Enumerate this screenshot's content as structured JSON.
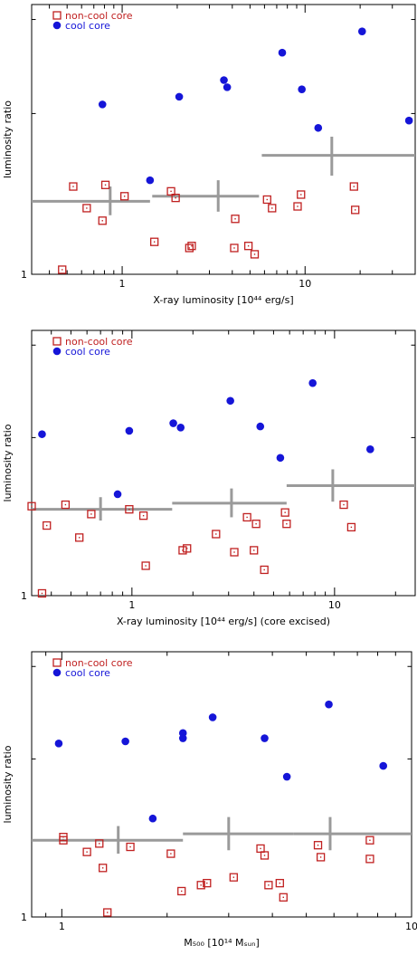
{
  "legend": {
    "non_cool": "non-cool core",
    "cool": "cool core"
  },
  "colors": {
    "non_cool": "#c02020",
    "cool": "#1515d8",
    "binned": "#9a9a9a",
    "axis": "#000000"
  },
  "chart_data": [
    {
      "type": "scatter",
      "xlabel": "X-ray luminosity [10⁴⁴ erg/s]",
      "ylabel": "luminosity ratio",
      "xscale": "log",
      "yscale": "log",
      "xlim": [
        0.32,
        40
      ],
      "ylim": [
        1,
        3.2
      ],
      "xticks": [
        {
          "v": 1,
          "label": "1"
        },
        {
          "v": 10,
          "label": "10"
        }
      ],
      "yticks": [
        {
          "v": 1,
          "label": "1"
        }
      ],
      "legend_position": "top-left",
      "series": [
        {
          "marker": "open-square",
          "points": [
            [
              0.47,
              1.02
            ],
            [
              0.54,
              1.46
            ],
            [
              0.64,
              1.33
            ],
            [
              0.78,
              1.26
            ],
            [
              0.81,
              1.47
            ],
            [
              1.03,
              1.4
            ],
            [
              1.5,
              1.15
            ],
            [
              1.85,
              1.43
            ],
            [
              1.96,
              1.39
            ],
            [
              2.33,
              1.12
            ],
            [
              2.4,
              1.13
            ],
            [
              4.15,
              1.27
            ],
            [
              4.1,
              1.12
            ],
            [
              4.9,
              1.13
            ],
            [
              5.3,
              1.09
            ],
            [
              6.2,
              1.38
            ],
            [
              6.6,
              1.33
            ],
            [
              9.1,
              1.34
            ],
            [
              9.5,
              1.41
            ],
            [
              18.5,
              1.46
            ],
            [
              18.8,
              1.32
            ]
          ]
        },
        {
          "marker": "filled-circle",
          "points": [
            [
              0.78,
              2.08
            ],
            [
              1.42,
              1.5
            ],
            [
              2.05,
              2.15
            ],
            [
              3.6,
              2.31
            ],
            [
              3.75,
              2.24
            ],
            [
              7.5,
              2.6
            ],
            [
              9.6,
              2.22
            ],
            [
              11.8,
              1.88
            ],
            [
              20.5,
              2.85
            ],
            [
              37,
              1.94
            ]
          ]
        }
      ],
      "binned": [
        {
          "x": 0.86,
          "x_lo": 0.32,
          "x_hi": 1.42,
          "y": 1.37,
          "y_lo": 1.29,
          "y_hi": 1.46
        },
        {
          "x": 3.35,
          "x_lo": 1.46,
          "x_hi": 5.6,
          "y": 1.4,
          "y_lo": 1.31,
          "y_hi": 1.5
        },
        {
          "x": 14.0,
          "x_lo": 5.8,
          "x_hi": 40,
          "y": 1.67,
          "y_lo": 1.53,
          "y_hi": 1.81
        }
      ]
    },
    {
      "type": "scatter",
      "xlabel": "X-ray luminosity [10⁴⁴ erg/s] (core excised)",
      "ylabel": "luminosity ratio",
      "xscale": "log",
      "yscale": "log",
      "xlim": [
        0.32,
        25
      ],
      "ylim": [
        1,
        3.2
      ],
      "xticks": [
        {
          "v": 1,
          "label": "1"
        },
        {
          "v": 10,
          "label": "10"
        }
      ],
      "yticks": [
        {
          "v": 1,
          "label": "1"
        }
      ],
      "legend_position": "top-left",
      "series": [
        {
          "marker": "open-square",
          "points": [
            [
              0.32,
              1.48
            ],
            [
              0.36,
              1.01
            ],
            [
              0.38,
              1.36
            ],
            [
              0.47,
              1.49
            ],
            [
              0.55,
              1.29
            ],
            [
              0.63,
              1.43
            ],
            [
              0.97,
              1.46
            ],
            [
              1.14,
              1.42
            ],
            [
              1.17,
              1.14
            ],
            [
              1.78,
              1.22
            ],
            [
              1.87,
              1.23
            ],
            [
              2.6,
              1.31
            ],
            [
              3.2,
              1.21
            ],
            [
              3.7,
              1.41
            ],
            [
              4.1,
              1.37
            ],
            [
              4.0,
              1.22
            ],
            [
              4.5,
              1.12
            ],
            [
              5.7,
              1.44
            ],
            [
              5.8,
              1.37
            ],
            [
              11.1,
              1.49
            ],
            [
              12.1,
              1.35
            ]
          ]
        },
        {
          "marker": "filled-circle",
          "points": [
            [
              0.36,
              2.03
            ],
            [
              0.85,
              1.56
            ],
            [
              0.97,
              2.06
            ],
            [
              1.6,
              2.13
            ],
            [
              1.74,
              2.09
            ],
            [
              3.06,
              2.35
            ],
            [
              4.3,
              2.1
            ],
            [
              5.4,
              1.83
            ],
            [
              7.8,
              2.54
            ],
            [
              15.0,
              1.9
            ]
          ]
        }
      ],
      "binned": [
        {
          "x": 0.7,
          "x_lo": 0.32,
          "x_hi": 1.58,
          "y": 1.46,
          "y_lo": 1.39,
          "y_hi": 1.54
        },
        {
          "x": 3.1,
          "x_lo": 1.58,
          "x_hi": 5.8,
          "y": 1.5,
          "y_lo": 1.41,
          "y_hi": 1.6
        },
        {
          "x": 9.8,
          "x_lo": 5.8,
          "x_hi": 25,
          "y": 1.62,
          "y_lo": 1.51,
          "y_hi": 1.74
        }
      ]
    },
    {
      "type": "scatter",
      "xlabel": "M₅₀₀ [10¹⁴ Mₛᵤₙ]",
      "ylabel": "luminosity ratio",
      "xscale": "log",
      "yscale": "log",
      "xlim": [
        0.82,
        10
      ],
      "ylim": [
        1,
        3.2
      ],
      "xticks": [
        {
          "v": 1,
          "label": "1"
        },
        {
          "v": 10,
          "label": "10"
        }
      ],
      "yticks": [
        {
          "v": 1,
          "label": "1"
        }
      ],
      "legend_position": "top-left",
      "series": [
        {
          "marker": "open-square",
          "points": [
            [
              1.01,
              1.42
            ],
            [
              1.01,
              1.4
            ],
            [
              1.18,
              1.33
            ],
            [
              1.28,
              1.38
            ],
            [
              1.31,
              1.24
            ],
            [
              1.57,
              1.36
            ],
            [
              1.35,
              1.02
            ],
            [
              2.05,
              1.32
            ],
            [
              2.2,
              1.12
            ],
            [
              2.5,
              1.15
            ],
            [
              2.6,
              1.16
            ],
            [
              3.1,
              1.19
            ],
            [
              3.7,
              1.35
            ],
            [
              3.8,
              1.31
            ],
            [
              3.9,
              1.15
            ],
            [
              4.2,
              1.16
            ],
            [
              4.3,
              1.09
            ],
            [
              5.4,
              1.37
            ],
            [
              5.5,
              1.3
            ],
            [
              7.6,
              1.4
            ],
            [
              7.6,
              1.29
            ]
          ]
        },
        {
          "marker": "filled-circle",
          "points": [
            [
              0.98,
              2.14
            ],
            [
              1.52,
              2.16
            ],
            [
              1.82,
              1.54
            ],
            [
              2.22,
              2.24
            ],
            [
              2.22,
              2.19
            ],
            [
              2.7,
              2.4
            ],
            [
              3.8,
              2.19
            ],
            [
              4.4,
              1.85
            ],
            [
              5.8,
              2.54
            ],
            [
              8.3,
              1.94
            ]
          ]
        }
      ],
      "binned": [
        {
          "x": 1.45,
          "x_lo": 0.82,
          "x_hi": 2.22,
          "y": 1.4,
          "y_lo": 1.32,
          "y_hi": 1.49
        },
        {
          "x": 3.0,
          "x_lo": 2.22,
          "x_hi": 4.6,
          "y": 1.44,
          "y_lo": 1.34,
          "y_hi": 1.55
        },
        {
          "x": 5.85,
          "x_lo": 4.6,
          "x_hi": 10,
          "y": 1.44,
          "y_lo": 1.34,
          "y_hi": 1.55
        }
      ]
    }
  ]
}
